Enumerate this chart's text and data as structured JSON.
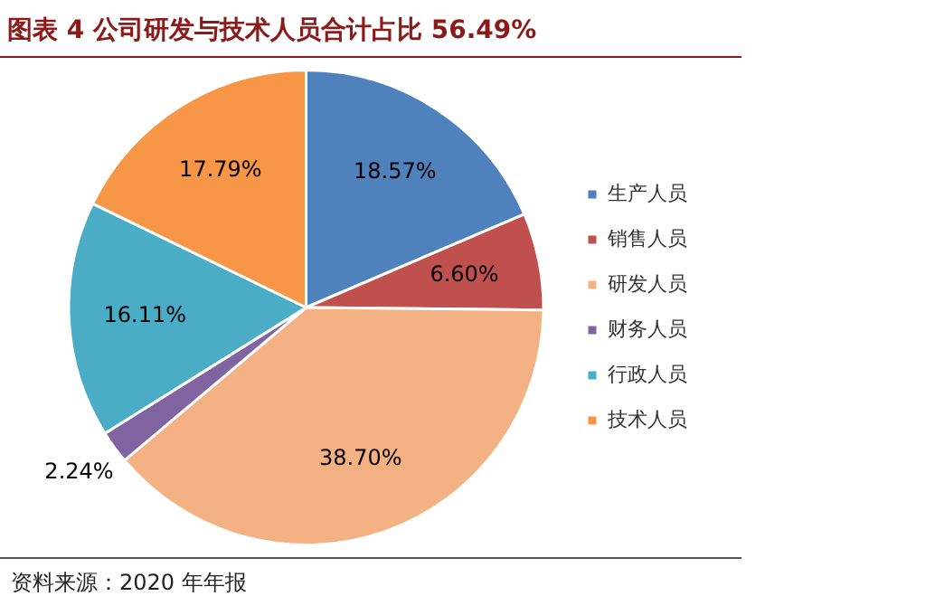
{
  "chart_data": {
    "type": "pie",
    "title": "图表 4 公司研发与技术人员合计占比 56.49%",
    "categories": [
      "生产人员",
      "销售人员",
      "研发人员",
      "财务人员",
      "行政人员",
      "技术人员"
    ],
    "values": [
      18.57,
      6.6,
      38.7,
      2.24,
      16.11,
      17.79
    ],
    "value_labels": [
      "18.57%",
      "6.60%",
      "38.70%",
      "2.24%",
      "16.11%",
      "17.79%"
    ],
    "colors": [
      "#4f81bd",
      "#c0504d",
      "#f4b183",
      "#8064a2",
      "#4bacc6",
      "#f79646"
    ],
    "legend": "right",
    "annotations": [
      "资料来源：2020 年年报"
    ]
  }
}
